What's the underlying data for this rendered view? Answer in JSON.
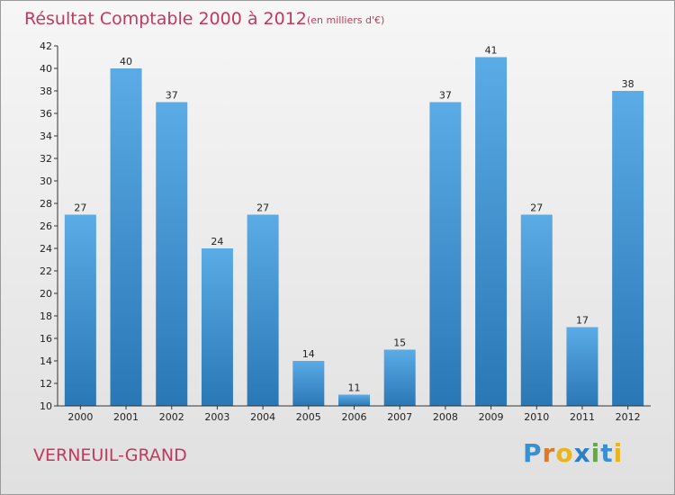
{
  "chart_data": {
    "type": "bar",
    "title": "Résultat Comptable 2000 à 2012",
    "subtitle": "(en milliers d'€)",
    "categories": [
      "2000",
      "2001",
      "2002",
      "2003",
      "2004",
      "2005",
      "2006",
      "2007",
      "2008",
      "2009",
      "2010",
      "2011",
      "2012"
    ],
    "values": [
      27,
      40,
      37,
      24,
      27,
      14,
      11,
      15,
      37,
      41,
      27,
      17,
      38
    ],
    "ylim": [
      10,
      42
    ],
    "yticks": [
      10,
      12,
      14,
      16,
      18,
      20,
      22,
      24,
      26,
      28,
      30,
      32,
      34,
      36,
      38,
      40,
      42
    ],
    "xlabel": "",
    "ylabel": "",
    "grid": false
  },
  "place_name": "VERNEUIL-GRAND",
  "brand": {
    "letters": [
      "P",
      "r",
      "o",
      "x",
      "i",
      "t",
      "i"
    ],
    "colors": [
      "#3a8fd0",
      "#e07a26",
      "#e8b51e",
      "#2f7fc4",
      "#5fae3a",
      "#3a8fd0",
      "#e8b51e"
    ]
  },
  "colors": {
    "bar_top": "#5aabe6",
    "bar_bottom": "#2a77b5",
    "title": "#c0395f"
  }
}
